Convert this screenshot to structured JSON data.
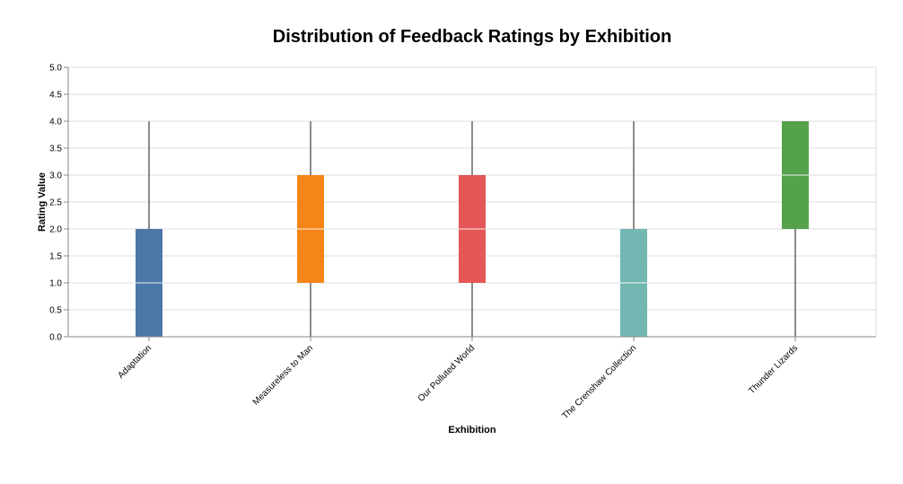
{
  "chart_data": {
    "type": "boxplot",
    "title": "Distribution of Feedback Ratings by Exhibition",
    "xlabel": "Exhibition",
    "ylabel": "Rating Value",
    "ylim": [
      0,
      5
    ],
    "yticks": [
      0,
      0.5,
      1,
      1.5,
      2,
      2.5,
      3,
      3.5,
      4,
      4.5,
      5
    ],
    "ytick_labels": [
      "0.0",
      "0.5",
      "1.0",
      "1.5",
      "2.0",
      "2.5",
      "3.0",
      "3.5",
      "4.0",
      "4.5",
      "5.0"
    ],
    "grid": true,
    "categories": [
      "Adaptation",
      "Measureless to Man",
      "Our Polluted World",
      "The Crenshaw Collection",
      "Thunder Lizards"
    ],
    "boxes": [
      {
        "category": "Adaptation",
        "min": 0,
        "q1": 0,
        "median": 1,
        "q3": 2,
        "max": 4,
        "color": "#4c78a8"
      },
      {
        "category": "Measureless to Man",
        "min": 0,
        "q1": 1,
        "median": 2,
        "q3": 3,
        "max": 4,
        "color": "#f58518"
      },
      {
        "category": "Our Polluted World",
        "min": 0,
        "q1": 1,
        "median": 2,
        "q3": 3,
        "max": 4,
        "color": "#e45756"
      },
      {
        "category": "The Crenshaw Collection",
        "min": 0,
        "q1": 0,
        "median": 1,
        "q3": 2,
        "max": 4,
        "color": "#72b7b2"
      },
      {
        "category": "Thunder Lizards",
        "min": 0,
        "q1": 2,
        "median": 3,
        "q3": 4,
        "max": 4,
        "color": "#54a24b"
      }
    ]
  }
}
